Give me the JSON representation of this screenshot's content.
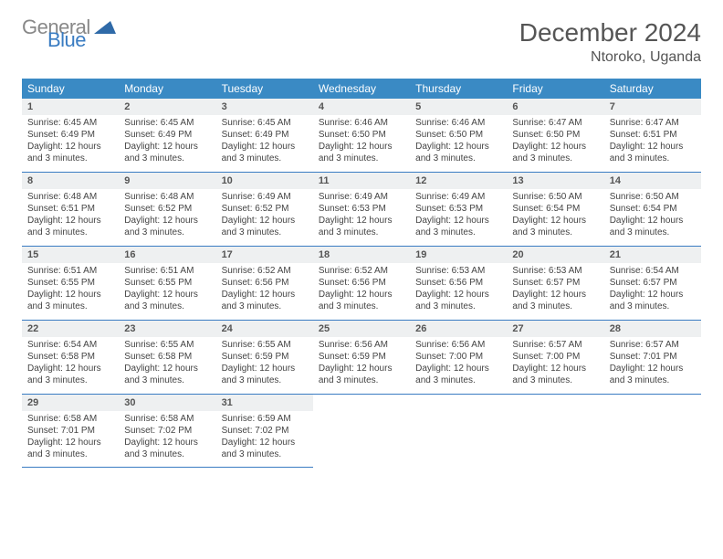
{
  "logo": {
    "line1": "General",
    "line2": "Blue",
    "triangle_color": "#2f6aa8"
  },
  "title": "December 2024",
  "location": "Ntoroko, Uganda",
  "accent_color": "#3a8ac4",
  "border_color": "#3a7cc2",
  "header_bg": "#eef0f1",
  "day_names": [
    "Sunday",
    "Monday",
    "Tuesday",
    "Wednesday",
    "Thursday",
    "Friday",
    "Saturday"
  ],
  "weeks": [
    [
      {
        "n": "1",
        "sr": "6:45 AM",
        "ss": "6:49 PM",
        "dl": "12 hours and 3 minutes."
      },
      {
        "n": "2",
        "sr": "6:45 AM",
        "ss": "6:49 PM",
        "dl": "12 hours and 3 minutes."
      },
      {
        "n": "3",
        "sr": "6:45 AM",
        "ss": "6:49 PM",
        "dl": "12 hours and 3 minutes."
      },
      {
        "n": "4",
        "sr": "6:46 AM",
        "ss": "6:50 PM",
        "dl": "12 hours and 3 minutes."
      },
      {
        "n": "5",
        "sr": "6:46 AM",
        "ss": "6:50 PM",
        "dl": "12 hours and 3 minutes."
      },
      {
        "n": "6",
        "sr": "6:47 AM",
        "ss": "6:50 PM",
        "dl": "12 hours and 3 minutes."
      },
      {
        "n": "7",
        "sr": "6:47 AM",
        "ss": "6:51 PM",
        "dl": "12 hours and 3 minutes."
      }
    ],
    [
      {
        "n": "8",
        "sr": "6:48 AM",
        "ss": "6:51 PM",
        "dl": "12 hours and 3 minutes."
      },
      {
        "n": "9",
        "sr": "6:48 AM",
        "ss": "6:52 PM",
        "dl": "12 hours and 3 minutes."
      },
      {
        "n": "10",
        "sr": "6:49 AM",
        "ss": "6:52 PM",
        "dl": "12 hours and 3 minutes."
      },
      {
        "n": "11",
        "sr": "6:49 AM",
        "ss": "6:53 PM",
        "dl": "12 hours and 3 minutes."
      },
      {
        "n": "12",
        "sr": "6:49 AM",
        "ss": "6:53 PM",
        "dl": "12 hours and 3 minutes."
      },
      {
        "n": "13",
        "sr": "6:50 AM",
        "ss": "6:54 PM",
        "dl": "12 hours and 3 minutes."
      },
      {
        "n": "14",
        "sr": "6:50 AM",
        "ss": "6:54 PM",
        "dl": "12 hours and 3 minutes."
      }
    ],
    [
      {
        "n": "15",
        "sr": "6:51 AM",
        "ss": "6:55 PM",
        "dl": "12 hours and 3 minutes."
      },
      {
        "n": "16",
        "sr": "6:51 AM",
        "ss": "6:55 PM",
        "dl": "12 hours and 3 minutes."
      },
      {
        "n": "17",
        "sr": "6:52 AM",
        "ss": "6:56 PM",
        "dl": "12 hours and 3 minutes."
      },
      {
        "n": "18",
        "sr": "6:52 AM",
        "ss": "6:56 PM",
        "dl": "12 hours and 3 minutes."
      },
      {
        "n": "19",
        "sr": "6:53 AM",
        "ss": "6:56 PM",
        "dl": "12 hours and 3 minutes."
      },
      {
        "n": "20",
        "sr": "6:53 AM",
        "ss": "6:57 PM",
        "dl": "12 hours and 3 minutes."
      },
      {
        "n": "21",
        "sr": "6:54 AM",
        "ss": "6:57 PM",
        "dl": "12 hours and 3 minutes."
      }
    ],
    [
      {
        "n": "22",
        "sr": "6:54 AM",
        "ss": "6:58 PM",
        "dl": "12 hours and 3 minutes."
      },
      {
        "n": "23",
        "sr": "6:55 AM",
        "ss": "6:58 PM",
        "dl": "12 hours and 3 minutes."
      },
      {
        "n": "24",
        "sr": "6:55 AM",
        "ss": "6:59 PM",
        "dl": "12 hours and 3 minutes."
      },
      {
        "n": "25",
        "sr": "6:56 AM",
        "ss": "6:59 PM",
        "dl": "12 hours and 3 minutes."
      },
      {
        "n": "26",
        "sr": "6:56 AM",
        "ss": "7:00 PM",
        "dl": "12 hours and 3 minutes."
      },
      {
        "n": "27",
        "sr": "6:57 AM",
        "ss": "7:00 PM",
        "dl": "12 hours and 3 minutes."
      },
      {
        "n": "28",
        "sr": "6:57 AM",
        "ss": "7:01 PM",
        "dl": "12 hours and 3 minutes."
      }
    ],
    [
      {
        "n": "29",
        "sr": "6:58 AM",
        "ss": "7:01 PM",
        "dl": "12 hours and 3 minutes."
      },
      {
        "n": "30",
        "sr": "6:58 AM",
        "ss": "7:02 PM",
        "dl": "12 hours and 3 minutes."
      },
      {
        "n": "31",
        "sr": "6:59 AM",
        "ss": "7:02 PM",
        "dl": "12 hours and 3 minutes."
      },
      null,
      null,
      null,
      null
    ]
  ],
  "labels": {
    "sunrise": "Sunrise: ",
    "sunset": "Sunset: ",
    "daylight": "Daylight: "
  }
}
